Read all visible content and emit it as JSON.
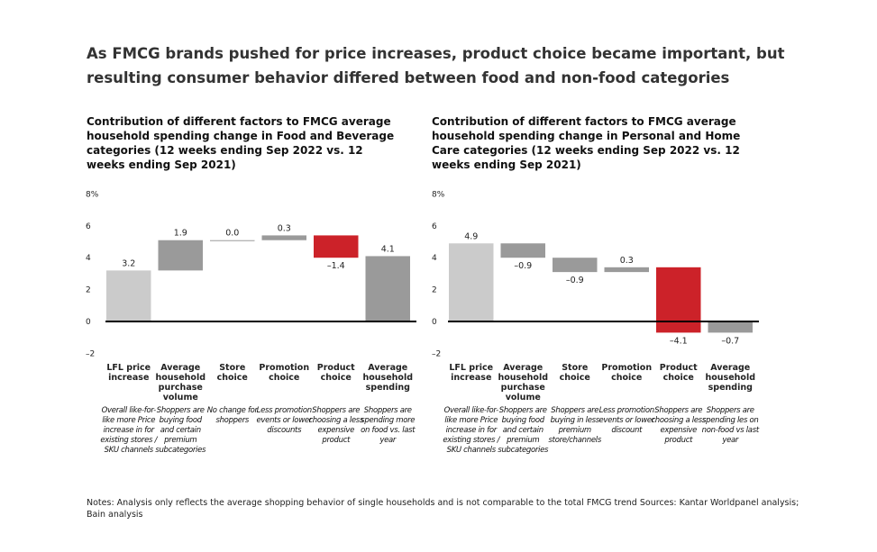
{
  "title": "As FMCG brands pushed for price increases, product choice became important, but resulting consumer behavior differed between food and non-food categories",
  "notes": "Notes: Analysis only reflects the average shopping behavior of single households and is not comparable to the total FMCG trend Sources: Kantar Worldpanel analysis; Bain analysis",
  "colors": {
    "light_gray": "#cbcbcb",
    "dark_gray": "#9a9a9a",
    "red": "#cc2229",
    "axis": "#000000"
  },
  "chart_data": [
    {
      "type": "waterfall",
      "title": "Contribution of different factors to FMCG average household spending change in Food and Beverage categories (12 weeks ending Sep 2022 vs. 12 weeks ending Sep 2021)",
      "ylim": [
        -2,
        8
      ],
      "y_ticks": [
        "8%",
        "6",
        "4",
        "2",
        "0",
        "–2"
      ],
      "y_tick_values": [
        8,
        6,
        4,
        2,
        0,
        -2
      ],
      "categories": [
        "LFL price increase",
        "Average household purchase volume",
        "Store choice",
        "Promotion choice",
        "Product choice",
        "Average household spending"
      ],
      "descriptions": [
        "Overall like-for-like more Price increase in for existing stores / SKU channels",
        "Shoppers are buying food and certain premium subcategories",
        "No change for shoppers",
        "Less promotion events or lower discounts",
        "Shoppers are choosing a less expensive product",
        "Shoppers are spending more on food vs. last year"
      ],
      "values": [
        3.2,
        1.9,
        0.0,
        0.3,
        -1.4,
        4.1
      ],
      "value_labels": [
        "3.2",
        "1.9",
        "0.0",
        "0.3",
        "–1.4",
        "4.1"
      ],
      "bar_kinds": [
        "start",
        "delta",
        "delta",
        "delta",
        "delta",
        "total"
      ],
      "bar_colors": [
        "light_gray",
        "dark_gray",
        "dark_gray",
        "dark_gray",
        "red",
        "dark_gray"
      ]
    },
    {
      "type": "waterfall",
      "title": "Contribution of different factors to FMCG average household spending change in Personal and Home Care categories (12 weeks ending Sep 2022 vs. 12 weeks ending Sep 2021)",
      "ylim": [
        -2,
        8
      ],
      "y_ticks": [
        "8%",
        "6",
        "4",
        "2",
        "0",
        "–2"
      ],
      "y_tick_values": [
        8,
        6,
        4,
        2,
        0,
        -2
      ],
      "categories": [
        "LFL price increase",
        "Average household purchase volume",
        "Store choice",
        "Promotion choice",
        "Product choice",
        "Average household spending"
      ],
      "descriptions": [
        "Overall like-for-like more Price increase in for existing stores / SKU channels",
        "Shoppers are buying food and certain premium subcategories",
        "Shoppers are buying in less premium store/channels",
        "Less promotion events or lower discount",
        "Shoppers are choosing a less expensive product",
        "Shoppers are spending les on non-food vs last year"
      ],
      "values": [
        4.9,
        -0.9,
        -0.9,
        0.3,
        -4.1,
        -0.7
      ],
      "value_labels": [
        "4.9",
        "–0.9",
        "–0.9",
        "0.3",
        "–4.1",
        "–0.7"
      ],
      "bar_kinds": [
        "start",
        "delta",
        "delta",
        "delta",
        "delta",
        "total"
      ],
      "bar_colors": [
        "light_gray",
        "dark_gray",
        "dark_gray",
        "dark_gray",
        "red",
        "dark_gray"
      ]
    }
  ]
}
